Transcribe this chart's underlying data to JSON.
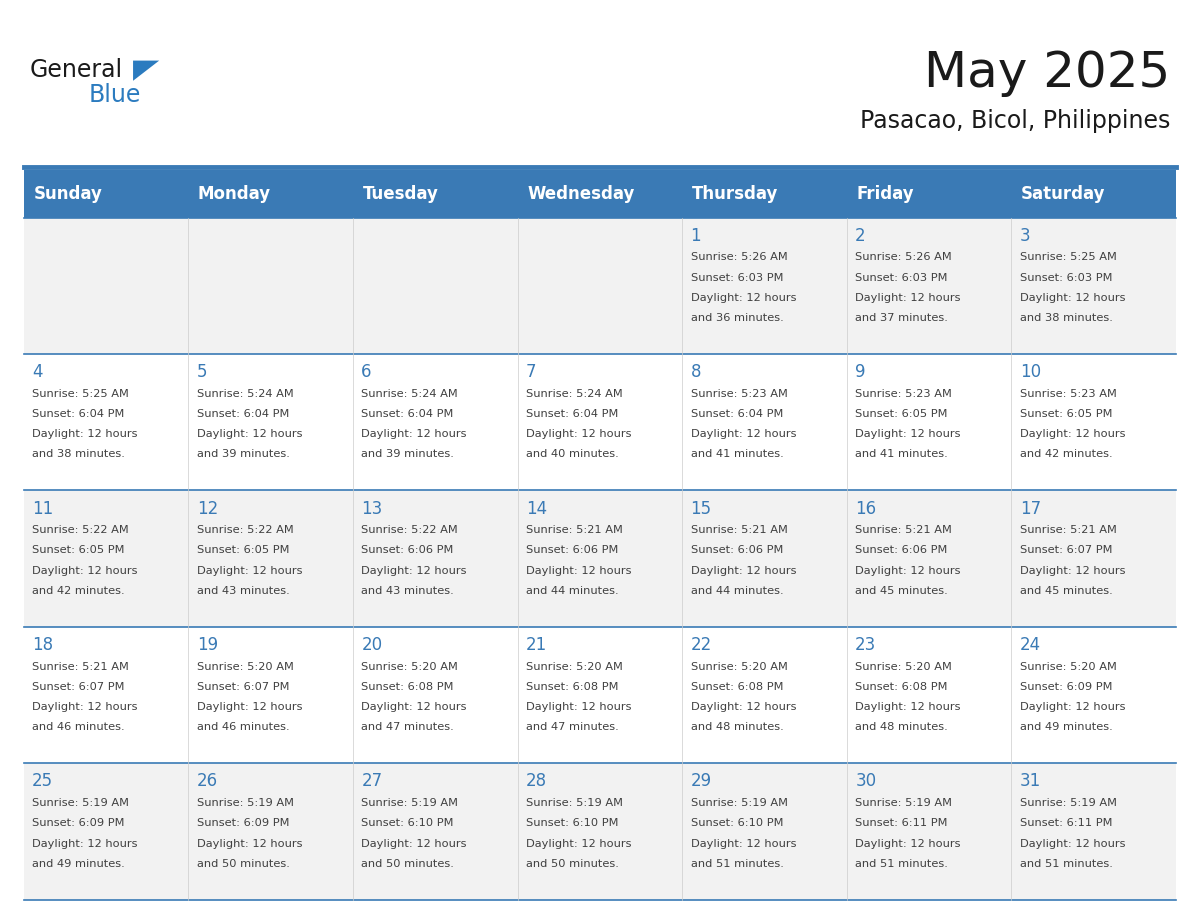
{
  "title": "May 2025",
  "subtitle": "Pasacao, Bicol, Philippines",
  "days_of_week": [
    "Sunday",
    "Monday",
    "Tuesday",
    "Wednesday",
    "Thursday",
    "Friday",
    "Saturday"
  ],
  "header_bg": "#3a7ab5",
  "header_text": "#ffffff",
  "row_bg_odd": "#f2f2f2",
  "row_bg_even": "#ffffff",
  "cell_border": "#3a7ab5",
  "day_number_color": "#3a7ab5",
  "info_text_color": "#404040",
  "title_color": "#1a1a1a",
  "subtitle_color": "#1a1a1a",
  "logo_general_color": "#1a1a1a",
  "logo_blue_color": "#2b7bbf",
  "calendar_data": [
    [
      null,
      null,
      null,
      null,
      {
        "day": 1,
        "sunrise": "5:26 AM",
        "sunset": "6:03 PM",
        "daylight": "12 hours and 36 minutes."
      },
      {
        "day": 2,
        "sunrise": "5:26 AM",
        "sunset": "6:03 PM",
        "daylight": "12 hours and 37 minutes."
      },
      {
        "day": 3,
        "sunrise": "5:25 AM",
        "sunset": "6:03 PM",
        "daylight": "12 hours and 38 minutes."
      }
    ],
    [
      {
        "day": 4,
        "sunrise": "5:25 AM",
        "sunset": "6:04 PM",
        "daylight": "12 hours and 38 minutes."
      },
      {
        "day": 5,
        "sunrise": "5:24 AM",
        "sunset": "6:04 PM",
        "daylight": "12 hours and 39 minutes."
      },
      {
        "day": 6,
        "sunrise": "5:24 AM",
        "sunset": "6:04 PM",
        "daylight": "12 hours and 39 minutes."
      },
      {
        "day": 7,
        "sunrise": "5:24 AM",
        "sunset": "6:04 PM",
        "daylight": "12 hours and 40 minutes."
      },
      {
        "day": 8,
        "sunrise": "5:23 AM",
        "sunset": "6:04 PM",
        "daylight": "12 hours and 41 minutes."
      },
      {
        "day": 9,
        "sunrise": "5:23 AM",
        "sunset": "6:05 PM",
        "daylight": "12 hours and 41 minutes."
      },
      {
        "day": 10,
        "sunrise": "5:23 AM",
        "sunset": "6:05 PM",
        "daylight": "12 hours and 42 minutes."
      }
    ],
    [
      {
        "day": 11,
        "sunrise": "5:22 AM",
        "sunset": "6:05 PM",
        "daylight": "12 hours and 42 minutes."
      },
      {
        "day": 12,
        "sunrise": "5:22 AM",
        "sunset": "6:05 PM",
        "daylight": "12 hours and 43 minutes."
      },
      {
        "day": 13,
        "sunrise": "5:22 AM",
        "sunset": "6:06 PM",
        "daylight": "12 hours and 43 minutes."
      },
      {
        "day": 14,
        "sunrise": "5:21 AM",
        "sunset": "6:06 PM",
        "daylight": "12 hours and 44 minutes."
      },
      {
        "day": 15,
        "sunrise": "5:21 AM",
        "sunset": "6:06 PM",
        "daylight": "12 hours and 44 minutes."
      },
      {
        "day": 16,
        "sunrise": "5:21 AM",
        "sunset": "6:06 PM",
        "daylight": "12 hours and 45 minutes."
      },
      {
        "day": 17,
        "sunrise": "5:21 AM",
        "sunset": "6:07 PM",
        "daylight": "12 hours and 45 minutes."
      }
    ],
    [
      {
        "day": 18,
        "sunrise": "5:21 AM",
        "sunset": "6:07 PM",
        "daylight": "12 hours and 46 minutes."
      },
      {
        "day": 19,
        "sunrise": "5:20 AM",
        "sunset": "6:07 PM",
        "daylight": "12 hours and 46 minutes."
      },
      {
        "day": 20,
        "sunrise": "5:20 AM",
        "sunset": "6:08 PM",
        "daylight": "12 hours and 47 minutes."
      },
      {
        "day": 21,
        "sunrise": "5:20 AM",
        "sunset": "6:08 PM",
        "daylight": "12 hours and 47 minutes."
      },
      {
        "day": 22,
        "sunrise": "5:20 AM",
        "sunset": "6:08 PM",
        "daylight": "12 hours and 48 minutes."
      },
      {
        "day": 23,
        "sunrise": "5:20 AM",
        "sunset": "6:08 PM",
        "daylight": "12 hours and 48 minutes."
      },
      {
        "day": 24,
        "sunrise": "5:20 AM",
        "sunset": "6:09 PM",
        "daylight": "12 hours and 49 minutes."
      }
    ],
    [
      {
        "day": 25,
        "sunrise": "5:19 AM",
        "sunset": "6:09 PM",
        "daylight": "12 hours and 49 minutes."
      },
      {
        "day": 26,
        "sunrise": "5:19 AM",
        "sunset": "6:09 PM",
        "daylight": "12 hours and 50 minutes."
      },
      {
        "day": 27,
        "sunrise": "5:19 AM",
        "sunset": "6:10 PM",
        "daylight": "12 hours and 50 minutes."
      },
      {
        "day": 28,
        "sunrise": "5:19 AM",
        "sunset": "6:10 PM",
        "daylight": "12 hours and 50 minutes."
      },
      {
        "day": 29,
        "sunrise": "5:19 AM",
        "sunset": "6:10 PM",
        "daylight": "12 hours and 51 minutes."
      },
      {
        "day": 30,
        "sunrise": "5:19 AM",
        "sunset": "6:11 PM",
        "daylight": "12 hours and 51 minutes."
      },
      {
        "day": 31,
        "sunrise": "5:19 AM",
        "sunset": "6:11 PM",
        "daylight": "12 hours and 51 minutes."
      }
    ]
  ]
}
